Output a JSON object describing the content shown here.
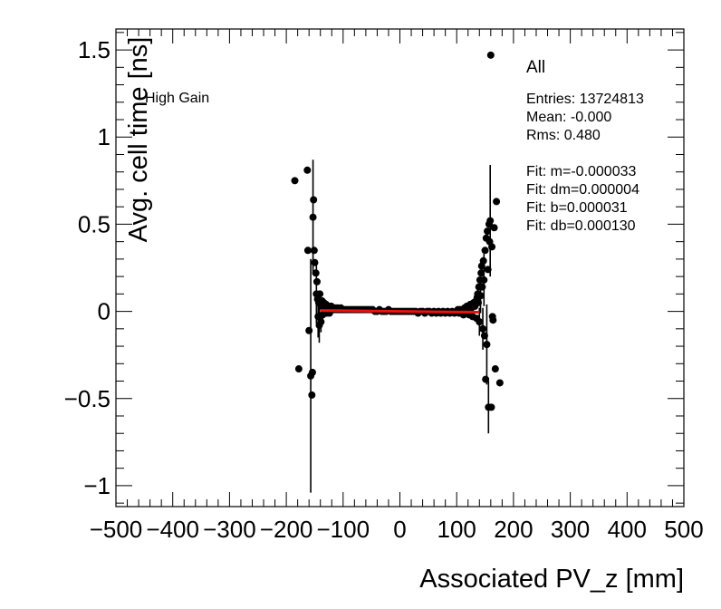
{
  "chart_data": {
    "type": "scatter",
    "xlabel": "Associated PV_z [mm]",
    "ylabel": "Avg. cell time [ns]",
    "xlim": [
      -500,
      500
    ],
    "ylim": [
      -1.12,
      1.62
    ],
    "x_ticks": [
      -500,
      -400,
      -300,
      -200,
      -100,
      0,
      100,
      200,
      300,
      400,
      500
    ],
    "x_tick_labels": [
      "−500",
      "−400",
      "−300",
      "−200",
      "−100",
      "0",
      "100",
      "200",
      "300",
      "400",
      "500"
    ],
    "y_ticks": [
      -1,
      -0.5,
      0,
      0.5,
      1,
      1.5
    ],
    "y_tick_labels": [
      "−1",
      "−0.5",
      "0",
      "0.5",
      "1",
      "1.5"
    ],
    "grid": false,
    "annotation_left": "High Gain",
    "stats": {
      "title": "All",
      "lines": [
        "Entries: 13724813",
        "Mean: -0.000",
        "Rms: 0.480",
        "",
        "Fit: m=-0.000033",
        "Fit: dm=0.000004",
        "Fit: b=0.000031",
        "Fit: db=0.000130"
      ]
    },
    "points": [
      [
        -185,
        0.75,
        0.0
      ],
      [
        -178,
        -0.33,
        0.0
      ],
      [
        -163,
        0.81,
        0.0
      ],
      [
        -162,
        0.35,
        0.0
      ],
      [
        -160,
        -0.11,
        0.0
      ],
      [
        -157,
        -0.37,
        0.67
      ],
      [
        -155,
        -0.48,
        0.0
      ],
      [
        -154,
        -0.35,
        0.0
      ],
      [
        -153,
        0.54,
        0.33
      ],
      [
        -152,
        0.64,
        0.0
      ],
      [
        -151,
        0.35,
        0.0
      ],
      [
        -150,
        0.28,
        0.0
      ],
      [
        -148,
        0.22,
        0.0
      ],
      [
        -147,
        0.1,
        0.17
      ],
      [
        -146,
        0.17,
        0.0
      ],
      [
        -145,
        0.07,
        0.0
      ],
      [
        -144,
        -0.03,
        0.12
      ],
      [
        -143,
        0.05,
        0.0
      ],
      [
        -142,
        -0.08,
        0.1
      ],
      [
        -141,
        0.1,
        0.0
      ],
      [
        -140,
        0.04,
        0.0
      ],
      [
        -139,
        -0.06,
        0.06
      ],
      [
        -138,
        0.03,
        0.0
      ],
      [
        -137,
        0.06,
        0.0
      ],
      [
        -136,
        -0.02,
        0.05
      ],
      [
        -135,
        0.02,
        0.0
      ],
      [
        -134,
        0.05,
        0.0
      ],
      [
        -133,
        -0.01,
        0.0
      ],
      [
        -132,
        0.03,
        0.0
      ],
      [
        -131,
        0.01,
        0.0
      ],
      [
        -130,
        0.04,
        0.0
      ],
      [
        -129,
        -0.01,
        0.0
      ],
      [
        -128,
        0.02,
        0.0
      ],
      [
        -127,
        0.03,
        0.0
      ],
      [
        -126,
        0.01,
        0.0
      ],
      [
        -125,
        0.02,
        0.0
      ],
      [
        -124,
        -0.01,
        0.0
      ],
      [
        -123,
        0.02,
        0.0
      ],
      [
        -122,
        0.01,
        0.0
      ],
      [
        -121,
        0.03,
        0.0
      ],
      [
        -120,
        0.01,
        0.0
      ],
      [
        -118,
        0.02,
        0.0
      ],
      [
        -116,
        0.01,
        0.0
      ],
      [
        -114,
        0.02,
        0.0
      ],
      [
        -112,
        0.01,
        0.0
      ],
      [
        -110,
        0.02,
        0.0
      ],
      [
        -108,
        0.01,
        0.0
      ],
      [
        -106,
        0.01,
        0.0
      ],
      [
        -104,
        0.02,
        0.0
      ],
      [
        -102,
        0.01,
        0.0
      ],
      [
        -100,
        0.01,
        0.0
      ],
      [
        -96,
        0.01,
        0.0
      ],
      [
        -92,
        0.01,
        0.0
      ],
      [
        -88,
        0.01,
        0.0
      ],
      [
        -84,
        0.01,
        0.0
      ],
      [
        -80,
        0.01,
        0.0
      ],
      [
        -76,
        0.01,
        0.0
      ],
      [
        -72,
        0.01,
        0.0
      ],
      [
        -68,
        0.01,
        0.0
      ],
      [
        -64,
        0.01,
        0.0
      ],
      [
        -60,
        0.01,
        0.0
      ],
      [
        -56,
        0.01,
        0.0
      ],
      [
        -52,
        0.01,
        0.0
      ],
      [
        -48,
        0.01,
        0.0
      ],
      [
        -44,
        0.0,
        0.0
      ],
      [
        -40,
        0.0,
        0.0
      ],
      [
        -36,
        0.01,
        0.0
      ],
      [
        -32,
        0.0,
        0.0
      ],
      [
        -28,
        0.0,
        0.0
      ],
      [
        -24,
        0.0,
        0.0
      ],
      [
        -20,
        0.01,
        0.0
      ],
      [
        -16,
        0.0,
        0.0
      ],
      [
        -12,
        0.0,
        0.0
      ],
      [
        -8,
        0.0,
        0.0
      ],
      [
        -4,
        0.0,
        0.0
      ],
      [
        0,
        0.0,
        0.0
      ],
      [
        4,
        0.0,
        0.0
      ],
      [
        8,
        0.0,
        0.0
      ],
      [
        12,
        0.0,
        0.0
      ],
      [
        16,
        0.0,
        0.0
      ],
      [
        20,
        0.0,
        0.0
      ],
      [
        24,
        0.0,
        0.0
      ],
      [
        28,
        0.0,
        0.0
      ],
      [
        32,
        -0.01,
        0.0
      ],
      [
        36,
        0.0,
        0.0
      ],
      [
        40,
        0.0,
        0.0
      ],
      [
        44,
        -0.01,
        0.0
      ],
      [
        48,
        0.0,
        0.0
      ],
      [
        52,
        0.0,
        0.0
      ],
      [
        56,
        -0.01,
        0.0
      ],
      [
        60,
        0.0,
        0.0
      ],
      [
        64,
        -0.01,
        0.0
      ],
      [
        68,
        0.0,
        0.0
      ],
      [
        72,
        -0.01,
        0.0
      ],
      [
        76,
        0.0,
        0.0
      ],
      [
        80,
        -0.01,
        0.0
      ],
      [
        84,
        0.0,
        0.0
      ],
      [
        88,
        -0.01,
        0.0
      ],
      [
        92,
        0.0,
        0.0
      ],
      [
        96,
        -0.01,
        0.0
      ],
      [
        100,
        0.0,
        0.0
      ],
      [
        102,
        0.01,
        0.0
      ],
      [
        104,
        -0.01,
        0.0
      ],
      [
        106,
        0.01,
        0.0
      ],
      [
        108,
        -0.01,
        0.0
      ],
      [
        110,
        0.01,
        0.0
      ],
      [
        112,
        -0.02,
        0.0
      ],
      [
        114,
        0.02,
        0.0
      ],
      [
        116,
        -0.01,
        0.0
      ],
      [
        118,
        0.03,
        0.0
      ],
      [
        120,
        0.02,
        0.0
      ],
      [
        122,
        -0.02,
        0.0
      ],
      [
        124,
        0.04,
        0.0
      ],
      [
        126,
        0.02,
        0.0
      ],
      [
        128,
        -0.03,
        0.0
      ],
      [
        130,
        0.05,
        0.0
      ],
      [
        132,
        0.03,
        0.0
      ],
      [
        134,
        0.06,
        0.05
      ],
      [
        135,
        -0.04,
        0.0
      ],
      [
        136,
        0.08,
        0.0
      ],
      [
        137,
        0.1,
        0.06
      ],
      [
        138,
        0.05,
        0.0
      ],
      [
        139,
        0.14,
        0.0
      ],
      [
        140,
        -0.06,
        0.08
      ],
      [
        141,
        0.18,
        0.0
      ],
      [
        142,
        0.09,
        0.1
      ],
      [
        143,
        0.22,
        0.0
      ],
      [
        144,
        0.26,
        0.0
      ],
      [
        145,
        0.14,
        0.0
      ],
      [
        146,
        -0.1,
        0.12
      ],
      [
        147,
        0.29,
        0.0
      ],
      [
        148,
        0.18,
        0.15
      ],
      [
        149,
        -0.14,
        0.0
      ],
      [
        150,
        0.35,
        0.0
      ],
      [
        151,
        -0.39,
        0.0
      ],
      [
        152,
        0.42,
        0.0
      ],
      [
        153,
        -0.19,
        0.23
      ],
      [
        154,
        0.46,
        0.0
      ],
      [
        155,
        0.24,
        0.0
      ],
      [
        156,
        -0.55,
        0.15
      ],
      [
        157,
        0.5,
        0.0
      ],
      [
        158,
        0.4,
        0.0
      ],
      [
        159,
        0.52,
        0.32
      ],
      [
        160,
        1.47,
        0.0
      ],
      [
        161,
        -0.55,
        0.0
      ],
      [
        162,
        0.37,
        0.0
      ],
      [
        163,
        -0.03,
        0.0
      ],
      [
        164,
        -0.05,
        0.0
      ],
      [
        166,
        0.48,
        0.0
      ],
      [
        168,
        -0.33,
        0.0
      ],
      [
        170,
        0.63,
        0.0
      ],
      [
        176,
        -0.41,
        0.0
      ]
    ],
    "fit_line": {
      "x_range": [
        -140,
        140
      ],
      "color": "#ee1111"
    },
    "marker_color": "#000000"
  }
}
